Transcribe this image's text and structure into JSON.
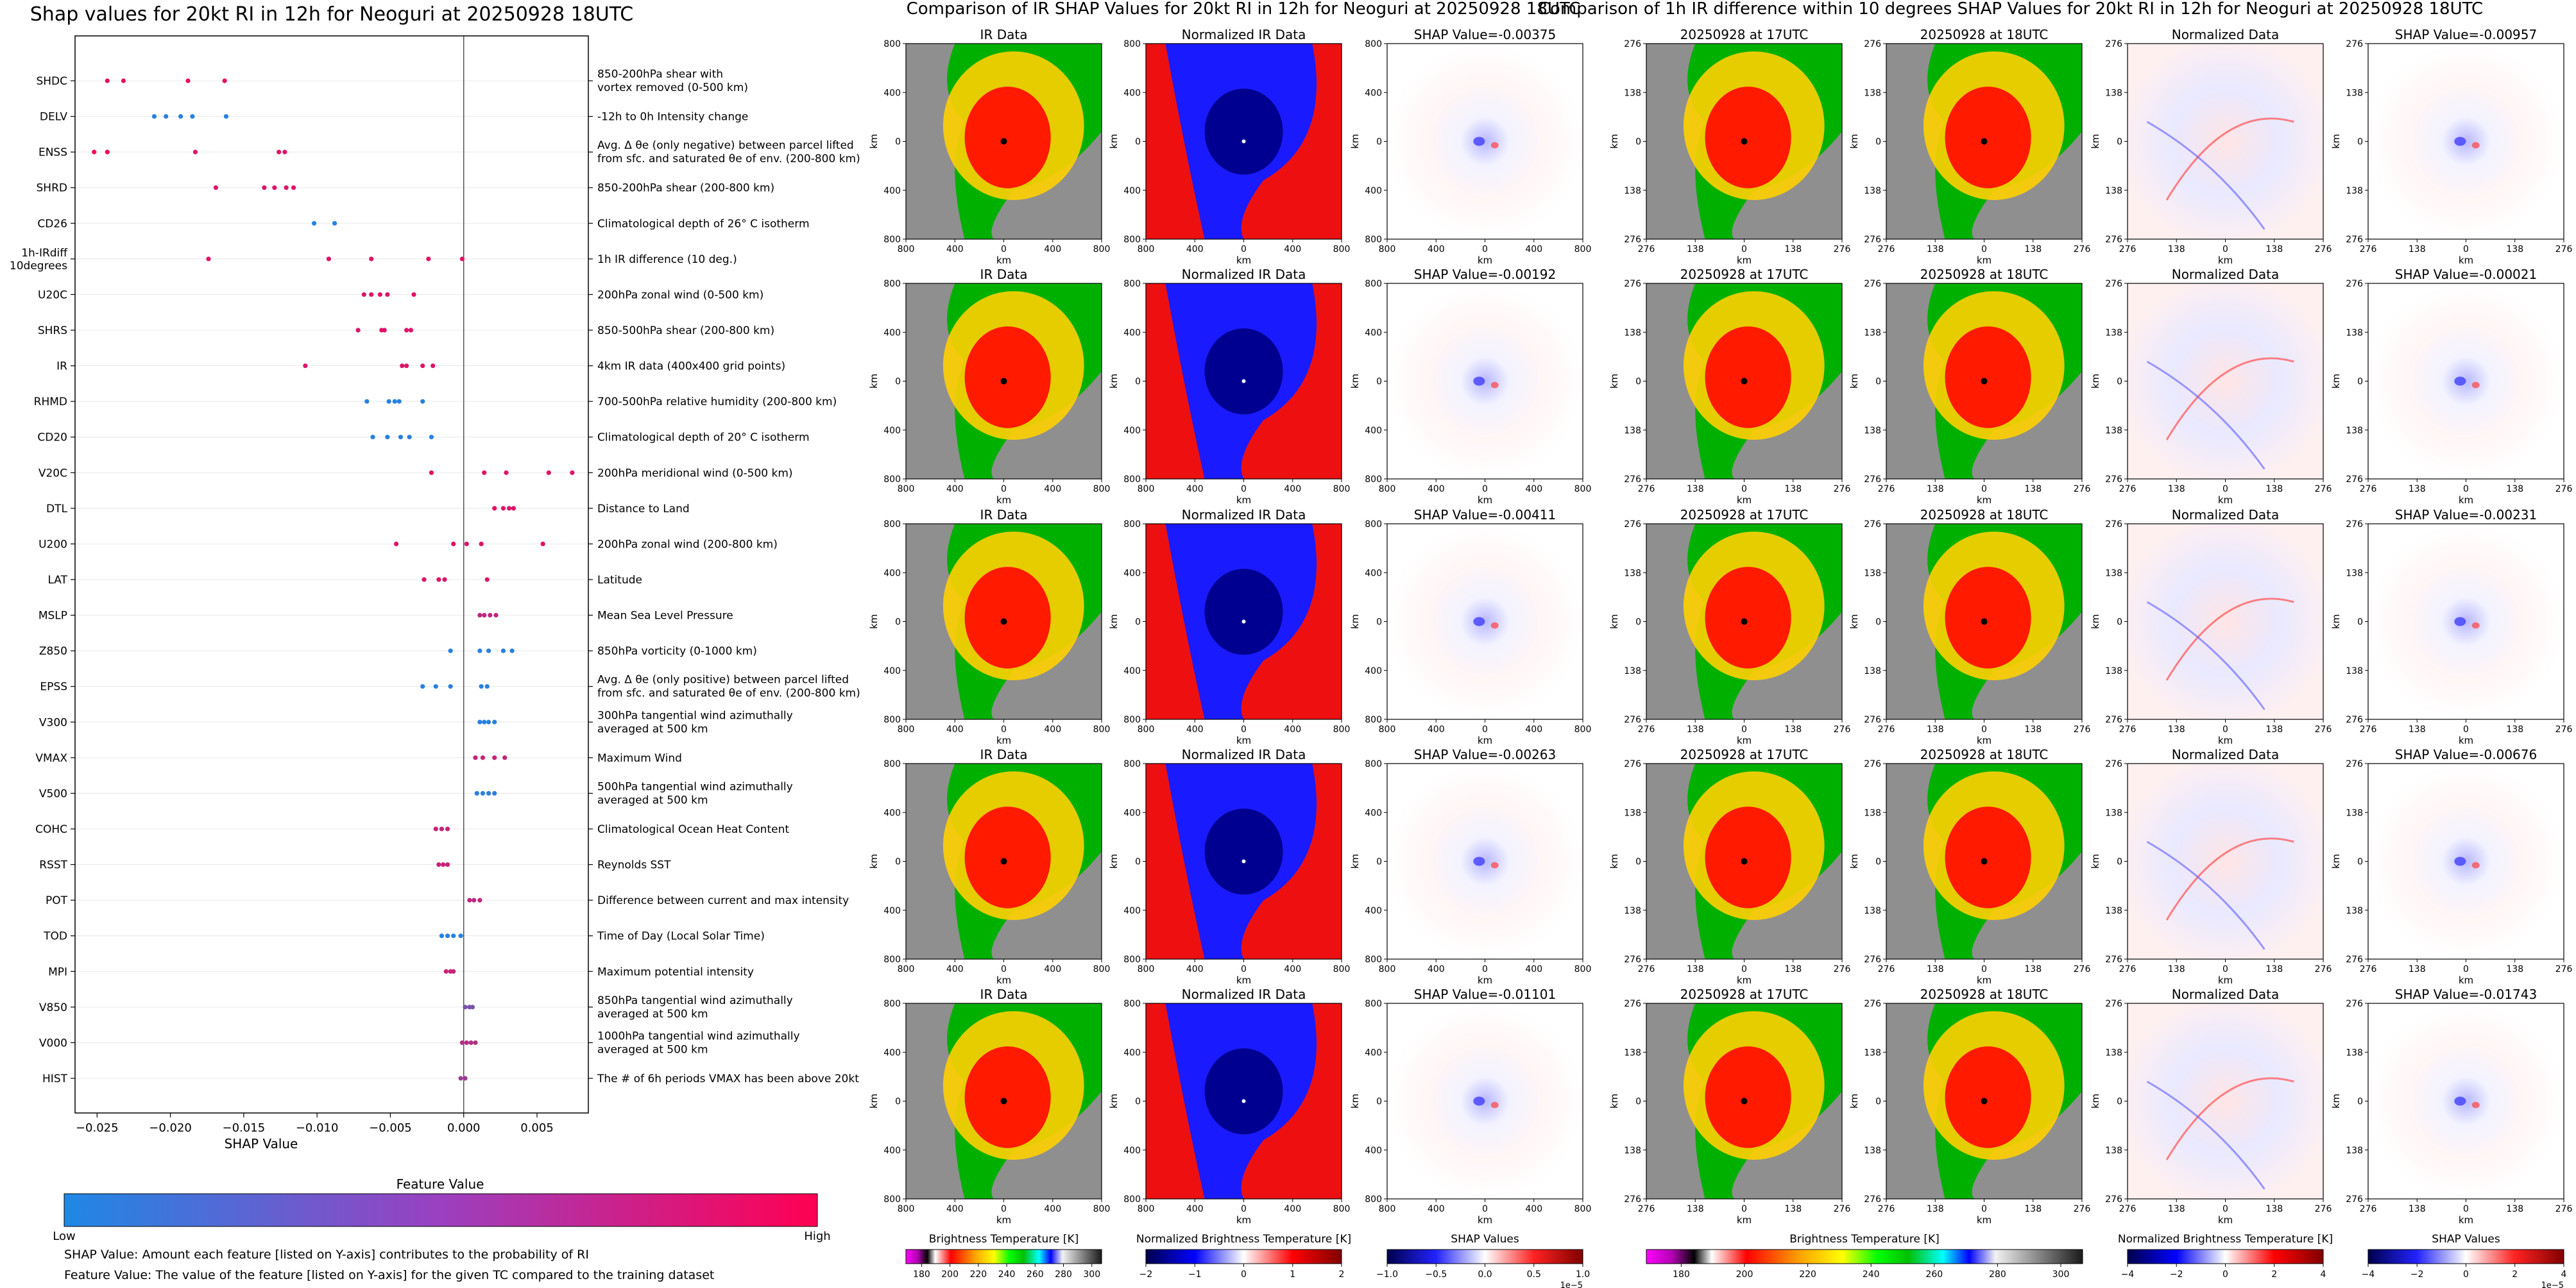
{
  "shap_panel": {
    "title": "Shap values for 20kt RI in 12h for Neoguri at 20250928 18UTC",
    "xlabel": "SHAP Value",
    "colorbar": {
      "title": "Feature Value",
      "low": "Low",
      "high": "High"
    },
    "footnotes": [
      "SHAP Value: Amount each feature [listed on Y-axis] contributes to the probability of RI",
      "Feature Value: The value of the feature [listed on Y-axis] for the given TC compared to the training dataset"
    ]
  },
  "ir_section": {
    "title": "Comparison of IR SHAP Values for 20kt RI in 12h for Neoguri at 20250928 18UTC",
    "col_titles": [
      "IR Data",
      "Normalized IR Data"
    ],
    "shap_titles": [
      "SHAP Value=-0.00375",
      "SHAP Value=-0.00192",
      "SHAP Value=-0.00411",
      "SHAP Value=-0.00263",
      "SHAP Value=-0.01101"
    ],
    "axis_label": "km",
    "ticks": [
      "800",
      "400",
      "0",
      "400",
      "800"
    ],
    "colorbars": [
      {
        "label": "Brightness Temperature [K]",
        "ticks": [
          "180",
          "200",
          "220",
          "240",
          "260",
          "280",
          "300"
        ]
      },
      {
        "label": "Normalized Brightness Temperature [K]",
        "ticks": [
          "−2",
          "−1",
          "0",
          "1",
          "2"
        ]
      },
      {
        "label": "SHAP Values",
        "ticks": [
          "−1.0",
          "−0.5",
          "0.0",
          "0.5",
          "1.0"
        ],
        "exponent": "1e−5"
      }
    ]
  },
  "diff_section": {
    "title": "Comparison of 1h IR difference within 10 degrees SHAP Values for 20kt RI in 12h for Neoguri at 20250928 18UTC",
    "col_titles": [
      "20250928 at 17UTC",
      "20250928 at 18UTC",
      "Normalized Data"
    ],
    "shap_titles": [
      "SHAP Value=-0.00957",
      "SHAP Value=-0.00021",
      "SHAP Value=-0.00231",
      "SHAP Value=-0.00676",
      "SHAP Value=-0.01743"
    ],
    "axis_label": "km",
    "ticks": [
      "276",
      "138",
      "0",
      "138",
      "276"
    ],
    "colorbars": [
      {
        "label": "Brightness Temperature [K]",
        "ticks": [
          "180",
          "200",
          "220",
          "240",
          "260",
          "280",
          "300"
        ]
      },
      {
        "label": "Normalized Brightness Temperature [K]",
        "ticks": [
          "−4",
          "−2",
          "0",
          "2",
          "4"
        ]
      },
      {
        "label": "SHAP Values",
        "ticks": [
          "−4",
          "−2",
          "0",
          "2",
          "4"
        ],
        "exponent": "1e−5"
      }
    ]
  },
  "chart_data": {
    "type": "scatter",
    "title": "Shap values for 20kt RI in 12h for Neoguri at 20250928 18UTC",
    "xlabel": "SHAP Value",
    "xlim": [
      -0.0265,
      0.0085
    ],
    "xticks": [
      -0.025,
      -0.02,
      -0.015,
      -0.01,
      -0.005,
      0,
      0.005
    ],
    "xtick_labels": [
      "−0.025",
      "−0.020",
      "−0.015",
      "−0.010",
      "−0.005",
      "0.000",
      "0.005"
    ],
    "color_low": "#1e88e5",
    "color_high": "#ff0052",
    "features": [
      {
        "name": "SHDC",
        "desc": [
          "850-200hPa shear with",
          "vortex removed (0-500 km)"
        ],
        "points": [
          [
            -0.0243,
            0.9
          ],
          [
            -0.0232,
            0.9
          ],
          [
            -0.0188,
            0.9
          ],
          [
            -0.0163,
            0.9
          ]
        ]
      },
      {
        "name": "DELV",
        "desc": [
          "-12h to 0h Intensity change"
        ],
        "points": [
          [
            -0.0211,
            0.05
          ],
          [
            -0.0203,
            0.05
          ],
          [
            -0.0193,
            0.05
          ],
          [
            -0.0185,
            0.05
          ],
          [
            -0.0162,
            0.05
          ]
        ]
      },
      {
        "name": "ENSS",
        "desc": [
          "Avg. Δ θe (only negative) between parcel lifted",
          "from sfc. and saturated θe of env. (200-800 km)"
        ],
        "points": [
          [
            -0.0252,
            0.95
          ],
          [
            -0.0243,
            0.95
          ],
          [
            -0.0183,
            0.85
          ],
          [
            -0.0126,
            0.85
          ],
          [
            -0.0122,
            0.85
          ]
        ]
      },
      {
        "name": "SHRD",
        "desc": [
          "850-200hPa shear (200-800 km)"
        ],
        "points": [
          [
            -0.0169,
            0.85
          ],
          [
            -0.0136,
            0.85
          ],
          [
            -0.0129,
            0.85
          ],
          [
            -0.0121,
            0.85
          ],
          [
            -0.0116,
            0.85
          ]
        ]
      },
      {
        "name": "CD26",
        "desc": [
          "Climatological depth of 26° C isotherm"
        ],
        "points": [
          [
            -0.0102,
            0.05
          ],
          [
            -0.0088,
            0.05
          ]
        ]
      },
      {
        "name": "1h-IRdiff|10degrees",
        "desc": [
          "1h IR difference (10 deg.)"
        ],
        "points": [
          [
            -0.0174,
            0.85
          ],
          [
            -0.0092,
            0.85
          ],
          [
            -0.0063,
            0.85
          ],
          [
            -0.0024,
            0.85
          ],
          [
            -0.0001,
            0.85
          ]
        ]
      },
      {
        "name": "U20C",
        "desc": [
          "200hPa zonal wind (0-500 km)"
        ],
        "points": [
          [
            -0.0068,
            0.85
          ],
          [
            -0.0063,
            0.85
          ],
          [
            -0.0057,
            0.85
          ],
          [
            -0.0052,
            0.85
          ],
          [
            -0.0034,
            0.85
          ]
        ]
      },
      {
        "name": "SHRS",
        "desc": [
          "850-500hPa shear (200-800 km)"
        ],
        "points": [
          [
            -0.0072,
            0.85
          ],
          [
            -0.0056,
            0.85
          ],
          [
            -0.0054,
            0.85
          ],
          [
            -0.0039,
            0.85
          ],
          [
            -0.0036,
            0.85
          ]
        ]
      },
      {
        "name": "IR",
        "desc": [
          "4km IR data (400x400 grid points)"
        ],
        "points": [
          [
            -0.0108,
            0.85
          ],
          [
            -0.0042,
            0.85
          ],
          [
            -0.0039,
            0.85
          ],
          [
            -0.0028,
            0.85
          ],
          [
            -0.0021,
            0.85
          ]
        ]
      },
      {
        "name": "RHMD",
        "desc": [
          "700-500hPa relative humidity (200-800 km)"
        ],
        "points": [
          [
            -0.0066,
            0.05
          ],
          [
            -0.0051,
            0.05
          ],
          [
            -0.0047,
            0.05
          ],
          [
            -0.0044,
            0.05
          ],
          [
            -0.0028,
            0.05
          ]
        ]
      },
      {
        "name": "CD20",
        "desc": [
          "Climatological depth of 20° C isotherm"
        ],
        "points": [
          [
            -0.0062,
            0.05
          ],
          [
            -0.0052,
            0.05
          ],
          [
            -0.0043,
            0.05
          ],
          [
            -0.0037,
            0.05
          ],
          [
            -0.0022,
            0.05
          ]
        ]
      },
      {
        "name": "V20C",
        "desc": [
          "200hPa meridional wind (0-500 km)"
        ],
        "points": [
          [
            -0.0022,
            0.85
          ],
          [
            0.0014,
            0.85
          ],
          [
            0.0029,
            0.85
          ],
          [
            0.0058,
            0.85
          ],
          [
            0.0074,
            0.85
          ]
        ]
      },
      {
        "name": "DTL",
        "desc": [
          "Distance to Land"
        ],
        "points": [
          [
            0.0021,
            0.85
          ],
          [
            0.0027,
            0.85
          ],
          [
            0.0031,
            0.85
          ],
          [
            0.0034,
            0.85
          ]
        ]
      },
      {
        "name": "U200",
        "desc": [
          "200hPa zonal wind (200-800 km)"
        ],
        "points": [
          [
            -0.0046,
            0.85
          ],
          [
            -0.0007,
            0.85
          ],
          [
            0.0002,
            0.85
          ],
          [
            0.0012,
            0.85
          ],
          [
            0.0054,
            0.85
          ]
        ]
      },
      {
        "name": "LAT",
        "desc": [
          "Latitude"
        ],
        "points": [
          [
            -0.0027,
            0.85
          ],
          [
            -0.0017,
            0.85
          ],
          [
            -0.0013,
            0.85
          ],
          [
            0.0016,
            0.85
          ]
        ]
      },
      {
        "name": "MSLP",
        "desc": [
          "Mean Sea Level Pressure"
        ],
        "points": [
          [
            0.0011,
            0.7
          ],
          [
            0.0014,
            0.7
          ],
          [
            0.0018,
            0.7
          ],
          [
            0.0022,
            0.7
          ]
        ]
      },
      {
        "name": "Z850",
        "desc": [
          "850hPa vorticity (0-1000 km)"
        ],
        "points": [
          [
            -0.0009,
            0.05
          ],
          [
            0.0011,
            0.05
          ],
          [
            0.0017,
            0.05
          ],
          [
            0.0027,
            0.05
          ],
          [
            0.0033,
            0.05
          ]
        ]
      },
      {
        "name": "EPSS",
        "desc": [
          "Avg. Δ θe (only positive) between parcel lifted",
          "from sfc. and saturated θe of env. (200-800 km)"
        ],
        "points": [
          [
            -0.0028,
            0.05
          ],
          [
            -0.0019,
            0.05
          ],
          [
            -0.0009,
            0.05
          ],
          [
            0.0012,
            0.05
          ],
          [
            0.0016,
            0.05
          ]
        ]
      },
      {
        "name": "V300",
        "desc": [
          "300hPa tangential wind azimuthally",
          "averaged at 500 km"
        ],
        "points": [
          [
            0.0011,
            0.05
          ],
          [
            0.0014,
            0.05
          ],
          [
            0.0017,
            0.05
          ],
          [
            0.0021,
            0.05
          ]
        ]
      },
      {
        "name": "VMAX",
        "desc": [
          "Maximum Wind"
        ],
        "points": [
          [
            0.0008,
            0.75
          ],
          [
            0.0013,
            0.75
          ],
          [
            0.0021,
            0.75
          ],
          [
            0.0028,
            0.75
          ]
        ]
      },
      {
        "name": "V500",
        "desc": [
          "500hPa tangential wind azimuthally",
          "averaged at 500 km"
        ],
        "points": [
          [
            0.0009,
            0.05
          ],
          [
            0.0013,
            0.05
          ],
          [
            0.0017,
            0.05
          ],
          [
            0.0021,
            0.05
          ]
        ]
      },
      {
        "name": "COHC",
        "desc": [
          "Climatological Ocean Heat Content"
        ],
        "points": [
          [
            -0.0019,
            0.75
          ],
          [
            -0.0015,
            0.75
          ],
          [
            -0.0011,
            0.75
          ]
        ]
      },
      {
        "name": "RSST",
        "desc": [
          "Reynolds SST"
        ],
        "points": [
          [
            -0.0017,
            0.75
          ],
          [
            -0.0014,
            0.75
          ],
          [
            -0.0011,
            0.75
          ]
        ]
      },
      {
        "name": "POT",
        "desc": [
          "Difference between current and max intensity"
        ],
        "points": [
          [
            0.0004,
            0.7
          ],
          [
            0.0007,
            0.7
          ],
          [
            0.0011,
            0.7
          ]
        ]
      },
      {
        "name": "TOD",
        "desc": [
          "Time of Day (Local Solar Time)"
        ],
        "points": [
          [
            -0.0015,
            0.05
          ],
          [
            -0.0011,
            0.05
          ],
          [
            -0.0007,
            0.05
          ],
          [
            -0.0002,
            0.05
          ]
        ]
      },
      {
        "name": "MPI",
        "desc": [
          "Maximum potential intensity"
        ],
        "points": [
          [
            -0.0012,
            0.75
          ],
          [
            -0.0009,
            0.75
          ],
          [
            -0.0007,
            0.75
          ]
        ]
      },
      {
        "name": "V850",
        "desc": [
          "850hPa tangential wind azimuthally",
          "averaged at 500 km"
        ],
        "points": [
          [
            0.0001,
            0.4
          ],
          [
            0.0004,
            0.4
          ],
          [
            0.0006,
            0.4
          ]
        ]
      },
      {
        "name": "V000",
        "desc": [
          "1000hPa tangential wind azimuthally",
          "averaged at 500 km"
        ],
        "points": [
          [
            -0.0001,
            0.65
          ],
          [
            0.0002,
            0.65
          ],
          [
            0.0005,
            0.65
          ],
          [
            0.0008,
            0.65
          ]
        ]
      },
      {
        "name": "HIST",
        "desc": [
          "The # of 6h periods VMAX has been above 20kt"
        ],
        "points": [
          [
            -0.0002,
            0.55
          ],
          [
            0.0001,
            0.55
          ]
        ]
      }
    ]
  }
}
